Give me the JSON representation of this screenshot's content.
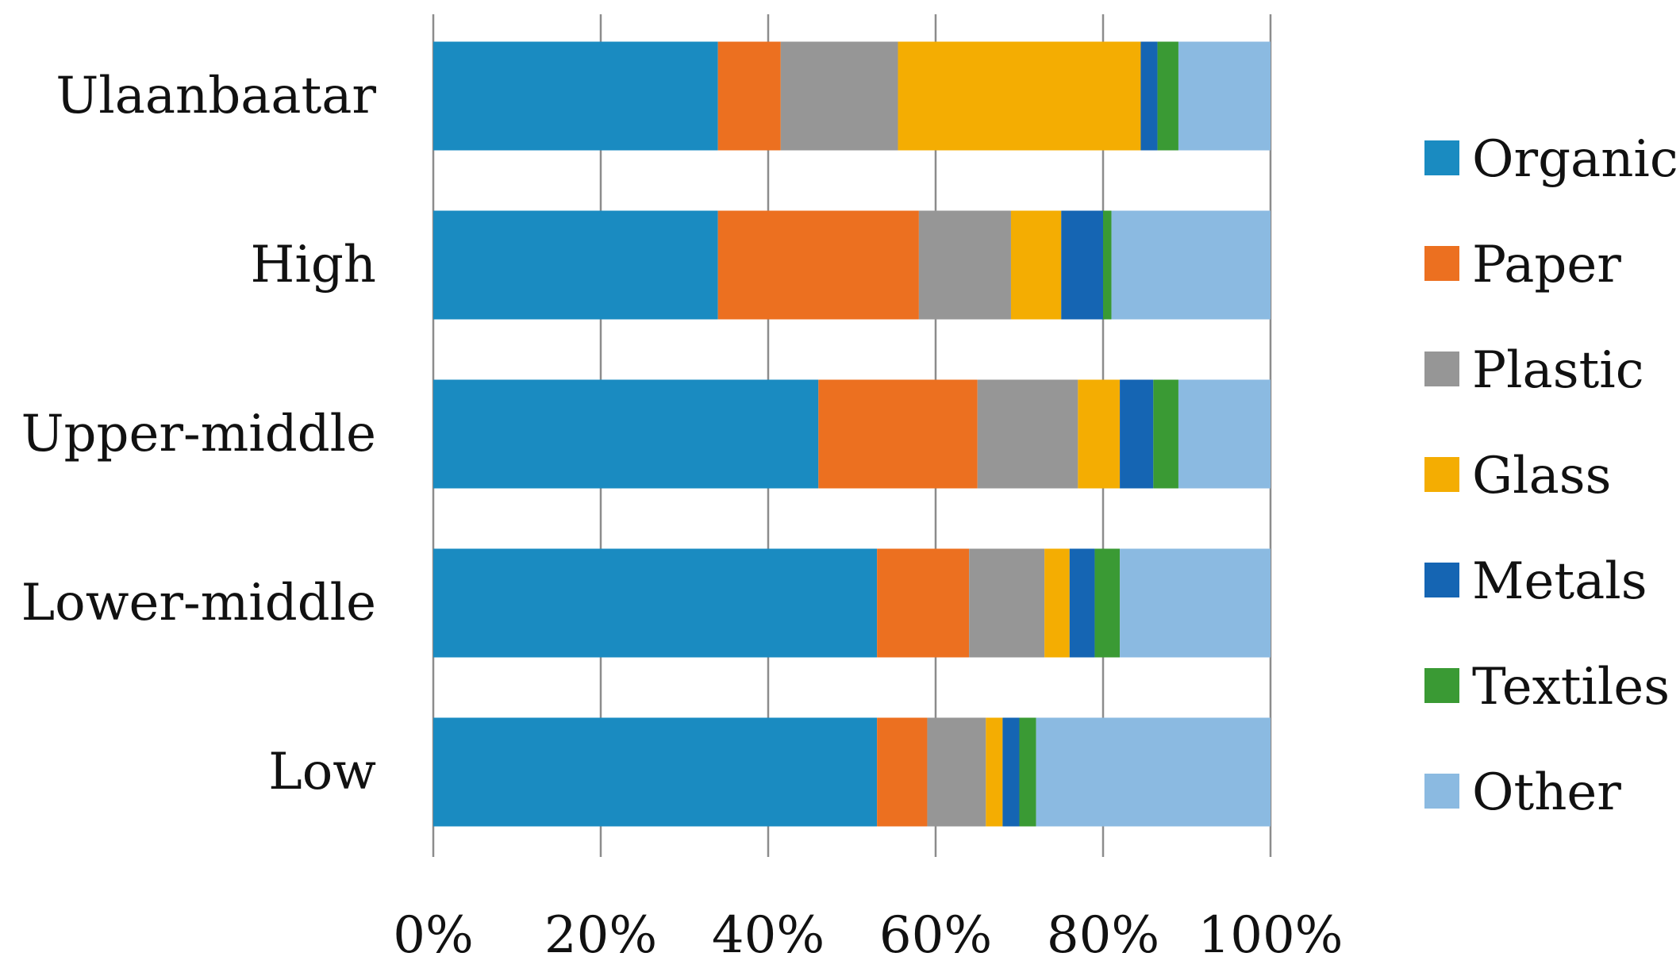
{
  "chart_data": {
    "type": "bar",
    "orientation": "horizontal",
    "stacked": true,
    "percent_stacked": true,
    "title": "",
    "xlabel": "",
    "ylabel": "",
    "xlim": [
      0,
      100
    ],
    "x_ticks": [
      "0%",
      "20%",
      "40%",
      "60%",
      "80%",
      "100%"
    ],
    "x_tick_values": [
      0,
      20,
      40,
      60,
      80,
      100
    ],
    "grid": "vertical",
    "legend_position": "right",
    "categories": [
      "Ulaanbaatar",
      "High",
      "Upper-middle",
      "Lower-middle",
      "Low"
    ],
    "series": [
      {
        "name": "Organic",
        "color": "#1a8bc1",
        "values": [
          34,
          34,
          46,
          53,
          53
        ]
      },
      {
        "name": "Paper",
        "color": "#ec7020",
        "values": [
          7.5,
          24,
          19,
          11,
          6
        ]
      },
      {
        "name": "Plastic",
        "color": "#969696",
        "values": [
          14,
          11,
          12,
          9,
          7
        ]
      },
      {
        "name": "Glass",
        "color": "#f4ad02",
        "values": [
          29,
          6,
          5,
          3,
          2
        ]
      },
      {
        "name": "Metals",
        "color": "#1565b3",
        "values": [
          2,
          5,
          4,
          3,
          2
        ]
      },
      {
        "name": "Textiles",
        "color": "#3a9a34",
        "values": [
          2.5,
          1,
          3,
          3,
          2
        ]
      },
      {
        "name": "Other",
        "color": "#8bbae1",
        "values": [
          11,
          19,
          11,
          18,
          28
        ]
      }
    ]
  }
}
